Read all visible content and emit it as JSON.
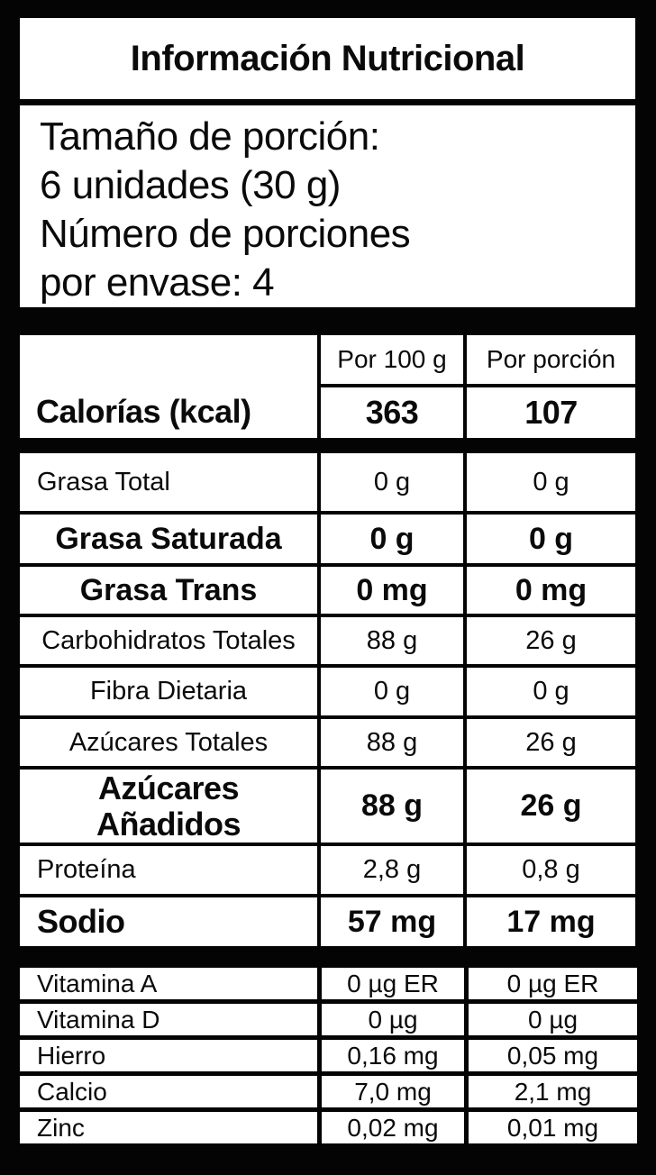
{
  "label": {
    "title": "Información Nutricional",
    "serving_lines": [
      "Tamaño de porción:",
      "6 unidades (30 g)",
      "Número de porciones",
      "por envase: 4"
    ],
    "columns": {
      "per100_header": "Por 100 g",
      "per_portion_header": "Por porción"
    },
    "calories": {
      "label": "Calorías (kcal)",
      "per100": "363",
      "per_portion": "107"
    },
    "nutrients": [
      {
        "label": "Grasa Total",
        "per100": "0 g",
        "per_portion": "0 g"
      },
      {
        "label": "Grasa Saturada",
        "per100": "0 g",
        "per_portion": "0 g"
      },
      {
        "label": "Grasa Trans",
        "per100": "0 mg",
        "per_portion": "0 mg"
      },
      {
        "label": "Carbohidratos Totales",
        "per100": "88 g",
        "per_portion": "26 g"
      },
      {
        "label": "Fibra Dietaria",
        "per100": "0 g",
        "per_portion": "0 g"
      },
      {
        "label": "Azúcares Totales",
        "per100": "88 g",
        "per_portion": "26 g"
      },
      {
        "label": "Azúcares\nAñadidos",
        "per100": "88 g",
        "per_portion": "26 g"
      },
      {
        "label": "Proteína",
        "per100": "2,8 g",
        "per_portion": "0,8 g"
      },
      {
        "label": "Sodio",
        "per100": "57 mg",
        "per_portion": "17 mg"
      }
    ],
    "micronutrients": [
      {
        "label": "Vitamina A",
        "per100": "0 µg ER",
        "per_portion": "0 µg ER"
      },
      {
        "label": "Vitamina D",
        "per100": "0 µg",
        "per_portion": "0 µg"
      },
      {
        "label": "Hierro",
        "per100": "0,16 mg",
        "per_portion": "0,05 mg"
      },
      {
        "label": "Calcio",
        "per100": "7,0 mg",
        "per_portion": "2,1 mg"
      },
      {
        "label": "Zinc",
        "per100": "0,02 mg",
        "per_portion": "0,01 mg"
      }
    ],
    "colors": {
      "background": "#040404",
      "cell": "#ffffff",
      "text": "#0a0a0a"
    }
  }
}
